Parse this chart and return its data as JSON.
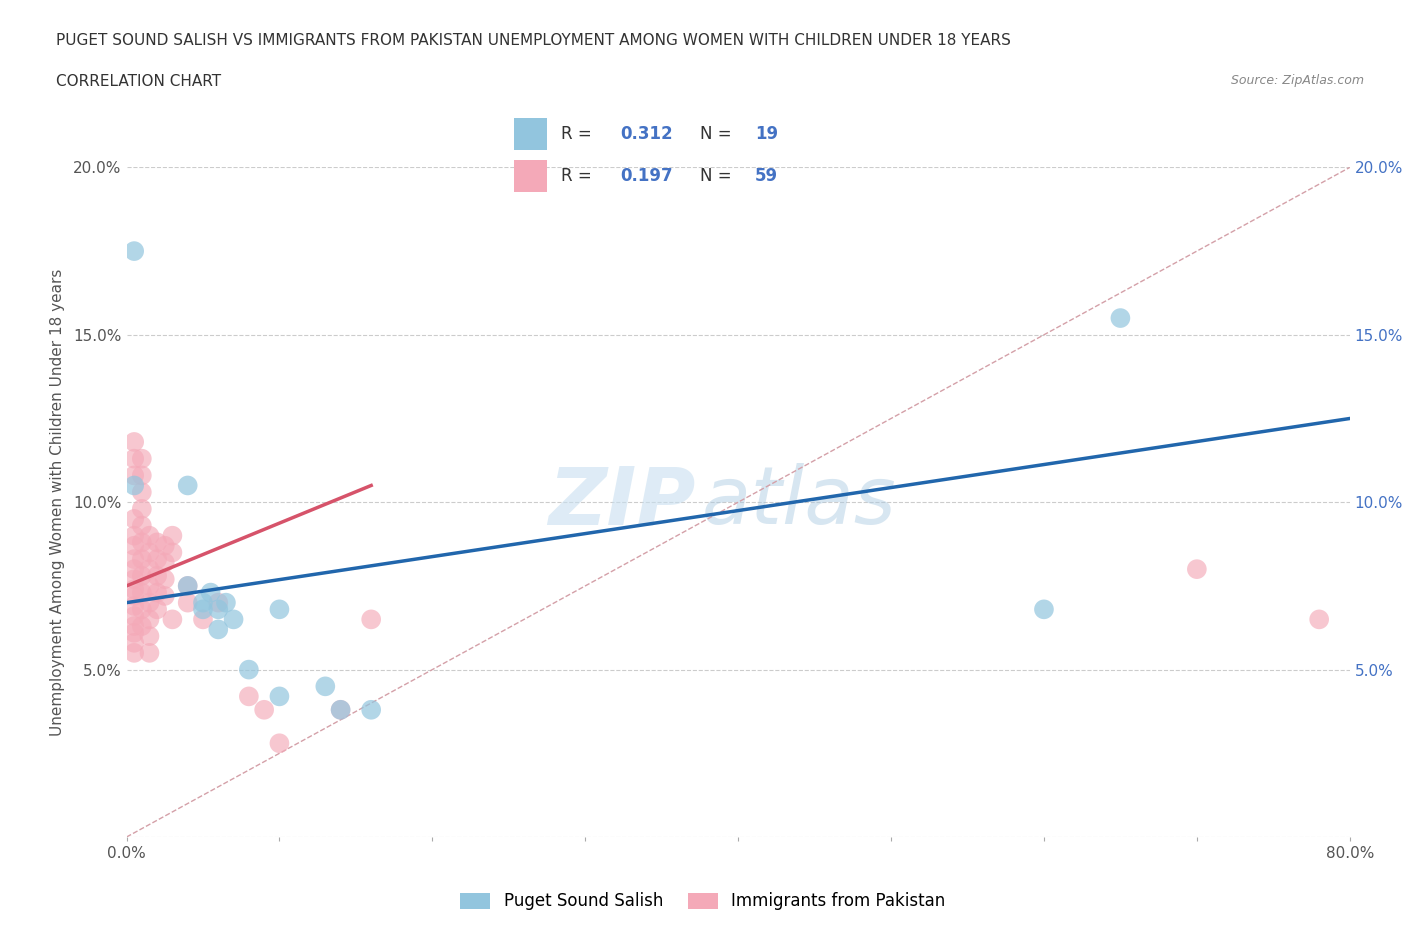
{
  "title_line1": "PUGET SOUND SALISH VS IMMIGRANTS FROM PAKISTAN UNEMPLOYMENT AMONG WOMEN WITH CHILDREN UNDER 18 YEARS",
  "title_line2": "CORRELATION CHART",
  "source_text": "Source: ZipAtlas.com",
  "ylabel": "Unemployment Among Women with Children Under 18 years",
  "xlim": [
    0.0,
    0.8
  ],
  "ylim": [
    0.0,
    0.2
  ],
  "xticks": [
    0.0,
    0.1,
    0.2,
    0.3,
    0.4,
    0.5,
    0.6,
    0.7,
    0.8
  ],
  "yticks": [
    0.0,
    0.05,
    0.1,
    0.15,
    0.2
  ],
  "R_blue": "0.312",
  "N_blue": "19",
  "R_pink": "0.197",
  "N_pink": "59",
  "legend_label_blue": "Puget Sound Salish",
  "legend_label_pink": "Immigrants from Pakistan",
  "watermark_ZIP": "ZIP",
  "watermark_atlas": "atlas",
  "blue_color": "#92c5de",
  "pink_color": "#f4a9b8",
  "blue_line_color": "#2166ac",
  "pink_line_color": "#d6536a",
  "ref_line_color": "#d4a0a8",
  "text_color_dark": "#555555",
  "text_color_blue": "#4472c4",
  "blue_trend": [
    0.0,
    0.07,
    0.8,
    0.125
  ],
  "pink_trend": [
    0.0,
    0.075,
    0.16,
    0.105
  ],
  "blue_scatter": [
    [
      0.005,
      0.175
    ],
    [
      0.005,
      0.105
    ],
    [
      0.04,
      0.105
    ],
    [
      0.04,
      0.075
    ],
    [
      0.05,
      0.07
    ],
    [
      0.05,
      0.068
    ],
    [
      0.055,
      0.073
    ],
    [
      0.06,
      0.068
    ],
    [
      0.06,
      0.062
    ],
    [
      0.065,
      0.07
    ],
    [
      0.07,
      0.065
    ],
    [
      0.08,
      0.05
    ],
    [
      0.1,
      0.068
    ],
    [
      0.1,
      0.042
    ],
    [
      0.13,
      0.045
    ],
    [
      0.14,
      0.038
    ],
    [
      0.16,
      0.038
    ],
    [
      0.6,
      0.068
    ],
    [
      0.65,
      0.155
    ]
  ],
  "pink_scatter": [
    [
      0.005,
      0.118
    ],
    [
      0.005,
      0.113
    ],
    [
      0.005,
      0.108
    ],
    [
      0.005,
      0.095
    ],
    [
      0.005,
      0.09
    ],
    [
      0.005,
      0.087
    ],
    [
      0.005,
      0.083
    ],
    [
      0.005,
      0.08
    ],
    [
      0.005,
      0.077
    ],
    [
      0.005,
      0.074
    ],
    [
      0.005,
      0.072
    ],
    [
      0.005,
      0.069
    ],
    [
      0.005,
      0.066
    ],
    [
      0.005,
      0.063
    ],
    [
      0.005,
      0.061
    ],
    [
      0.005,
      0.058
    ],
    [
      0.005,
      0.055
    ],
    [
      0.01,
      0.113
    ],
    [
      0.01,
      0.108
    ],
    [
      0.01,
      0.103
    ],
    [
      0.01,
      0.098
    ],
    [
      0.01,
      0.093
    ],
    [
      0.01,
      0.088
    ],
    [
      0.01,
      0.083
    ],
    [
      0.01,
      0.078
    ],
    [
      0.01,
      0.073
    ],
    [
      0.01,
      0.068
    ],
    [
      0.01,
      0.063
    ],
    [
      0.015,
      0.09
    ],
    [
      0.015,
      0.085
    ],
    [
      0.015,
      0.08
    ],
    [
      0.015,
      0.075
    ],
    [
      0.015,
      0.07
    ],
    [
      0.015,
      0.065
    ],
    [
      0.015,
      0.06
    ],
    [
      0.015,
      0.055
    ],
    [
      0.02,
      0.088
    ],
    [
      0.02,
      0.083
    ],
    [
      0.02,
      0.078
    ],
    [
      0.02,
      0.073
    ],
    [
      0.02,
      0.068
    ],
    [
      0.025,
      0.087
    ],
    [
      0.025,
      0.082
    ],
    [
      0.025,
      0.077
    ],
    [
      0.025,
      0.072
    ],
    [
      0.03,
      0.09
    ],
    [
      0.03,
      0.085
    ],
    [
      0.03,
      0.065
    ],
    [
      0.04,
      0.075
    ],
    [
      0.04,
      0.07
    ],
    [
      0.05,
      0.065
    ],
    [
      0.06,
      0.07
    ],
    [
      0.08,
      0.042
    ],
    [
      0.09,
      0.038
    ],
    [
      0.1,
      0.028
    ],
    [
      0.14,
      0.038
    ],
    [
      0.16,
      0.065
    ],
    [
      0.7,
      0.08
    ],
    [
      0.78,
      0.065
    ]
  ]
}
